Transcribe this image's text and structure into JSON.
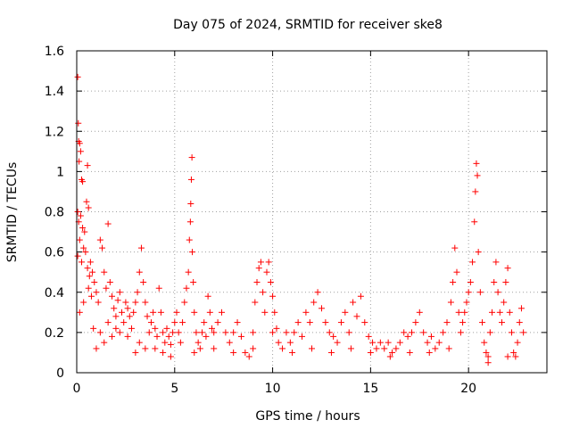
{
  "chart_data": {
    "type": "scatter",
    "title": "Day 075 of 2024, SRMTID for receiver ske8",
    "xlabel": "GPS time / hours",
    "ylabel": "SRMTID / TECUs",
    "xlim": [
      0,
      24
    ],
    "ylim": [
      0,
      1.6
    ],
    "xticks": [
      0,
      5,
      10,
      15,
      20
    ],
    "xtick_labels": [
      "0",
      "5",
      "10",
      "15",
      "20"
    ],
    "yticks": [
      0,
      0.2,
      0.4,
      0.6,
      0.8,
      1,
      1.2,
      1.4,
      1.6
    ],
    "ytick_labels": [
      "0",
      "0.2",
      "0.4",
      "0.6",
      "0.8",
      "1",
      "1.2",
      "1.4",
      "1.6"
    ],
    "grid": true,
    "marker": "plus",
    "series": [
      {
        "name": "SRMTID",
        "color": "#ff0000",
        "points": [
          [
            0.05,
            1.47
          ],
          [
            0.08,
            1.24
          ],
          [
            0.1,
            1.15
          ],
          [
            0.15,
            1.14
          ],
          [
            0.2,
            1.1
          ],
          [
            0.12,
            1.05
          ],
          [
            0.25,
            0.96
          ],
          [
            0.3,
            0.95
          ],
          [
            0.55,
            1.03
          ],
          [
            0.05,
            0.8
          ],
          [
            0.1,
            0.75
          ],
          [
            0.2,
            0.78
          ],
          [
            0.3,
            0.72
          ],
          [
            0.4,
            0.7
          ],
          [
            0.5,
            0.85
          ],
          [
            0.6,
            0.82
          ],
          [
            0.15,
            0.66
          ],
          [
            0.35,
            0.62
          ],
          [
            0.05,
            0.58
          ],
          [
            0.25,
            0.55
          ],
          [
            0.45,
            0.6
          ],
          [
            0.55,
            0.52
          ],
          [
            0.65,
            0.48
          ],
          [
            0.7,
            0.55
          ],
          [
            0.8,
            0.5
          ],
          [
            0.9,
            0.45
          ],
          [
            1.0,
            0.4
          ],
          [
            0.15,
            0.3
          ],
          [
            0.35,
            0.35
          ],
          [
            0.6,
            0.42
          ],
          [
            0.75,
            0.38
          ],
          [
            0.85,
            0.22
          ],
          [
            1.1,
            0.35
          ],
          [
            1.2,
            0.66
          ],
          [
            1.3,
            0.62
          ],
          [
            1.4,
            0.5
          ],
          [
            1.5,
            0.42
          ],
          [
            1.6,
            0.74
          ],
          [
            1.7,
            0.45
          ],
          [
            1.8,
            0.38
          ],
          [
            1.9,
            0.32
          ],
          [
            2.0,
            0.28
          ],
          [
            2.1,
            0.36
          ],
          [
            2.2,
            0.4
          ],
          [
            2.3,
            0.3
          ],
          [
            2.4,
            0.25
          ],
          [
            2.5,
            0.35
          ],
          [
            2.6,
            0.32
          ],
          [
            2.7,
            0.28
          ],
          [
            2.8,
            0.22
          ],
          [
            2.9,
            0.3
          ],
          [
            3.0,
            0.35
          ],
          [
            3.1,
            0.4
          ],
          [
            3.2,
            0.5
          ],
          [
            3.3,
            0.62
          ],
          [
            3.4,
            0.45
          ],
          [
            3.5,
            0.35
          ],
          [
            3.6,
            0.28
          ],
          [
            3.7,
            0.2
          ],
          [
            3.8,
            0.25
          ],
          [
            3.9,
            0.3
          ],
          [
            4.0,
            0.22
          ],
          [
            4.1,
            0.18
          ],
          [
            4.2,
            0.42
          ],
          [
            4.3,
            0.3
          ],
          [
            4.4,
            0.2
          ],
          [
            4.5,
            0.15
          ],
          [
            4.6,
            0.22
          ],
          [
            4.7,
            0.18
          ],
          [
            4.8,
            0.14
          ],
          [
            4.9,
            0.2
          ],
          [
            5.0,
            0.25
          ],
          [
            1.2,
            0.2
          ],
          [
            1.4,
            0.15
          ],
          [
            1.6,
            0.25
          ],
          [
            1.8,
            0.18
          ],
          [
            2.2,
            0.2
          ],
          [
            2.6,
            0.18
          ],
          [
            3.0,
            0.1
          ],
          [
            3.2,
            0.15
          ],
          [
            3.5,
            0.12
          ],
          [
            4.0,
            0.12
          ],
          [
            4.4,
            0.1
          ],
          [
            4.8,
            0.08
          ],
          [
            5.1,
            0.3
          ],
          [
            5.2,
            0.2
          ],
          [
            5.3,
            0.15
          ],
          [
            5.4,
            0.25
          ],
          [
            5.5,
            0.35
          ],
          [
            5.6,
            0.42
          ],
          [
            5.7,
            0.5
          ],
          [
            5.75,
            0.66
          ],
          [
            5.8,
            0.75
          ],
          [
            5.82,
            0.84
          ],
          [
            5.85,
            0.96
          ],
          [
            5.88,
            1.07
          ],
          [
            5.9,
            0.6
          ],
          [
            5.95,
            0.45
          ],
          [
            6.0,
            0.3
          ],
          [
            6.1,
            0.2
          ],
          [
            6.2,
            0.15
          ],
          [
            6.3,
            0.12
          ],
          [
            6.4,
            0.2
          ],
          [
            6.5,
            0.25
          ],
          [
            6.6,
            0.18
          ],
          [
            6.7,
            0.38
          ],
          [
            6.8,
            0.3
          ],
          [
            6.9,
            0.22
          ],
          [
            7.0,
            0.2
          ],
          [
            7.2,
            0.25
          ],
          [
            7.4,
            0.3
          ],
          [
            7.6,
            0.2
          ],
          [
            7.8,
            0.15
          ],
          [
            8.0,
            0.2
          ],
          [
            8.2,
            0.25
          ],
          [
            8.4,
            0.18
          ],
          [
            8.6,
            0.1
          ],
          [
            8.8,
            0.08
          ],
          [
            9.0,
            0.2
          ],
          [
            9.1,
            0.35
          ],
          [
            9.2,
            0.45
          ],
          [
            9.3,
            0.52
          ],
          [
            9.4,
            0.55
          ],
          [
            9.5,
            0.4
          ],
          [
            9.6,
            0.3
          ],
          [
            9.7,
            0.5
          ],
          [
            9.8,
            0.55
          ],
          [
            9.9,
            0.45
          ],
          [
            10.0,
            0.38
          ],
          [
            10.1,
            0.3
          ],
          [
            10.2,
            0.22
          ],
          [
            10.3,
            0.15
          ],
          [
            10.5,
            0.12
          ],
          [
            10.7,
            0.2
          ],
          [
            10.9,
            0.15
          ],
          [
            11.1,
            0.2
          ],
          [
            11.3,
            0.25
          ],
          [
            11.5,
            0.18
          ],
          [
            11.7,
            0.3
          ],
          [
            11.9,
            0.25
          ],
          [
            12.1,
            0.35
          ],
          [
            12.3,
            0.4
          ],
          [
            12.5,
            0.32
          ],
          [
            12.7,
            0.25
          ],
          [
            12.9,
            0.2
          ],
          [
            13.1,
            0.18
          ],
          [
            13.3,
            0.15
          ],
          [
            13.5,
            0.25
          ],
          [
            13.7,
            0.3
          ],
          [
            13.9,
            0.2
          ],
          [
            14.1,
            0.35
          ],
          [
            14.3,
            0.28
          ],
          [
            14.5,
            0.38
          ],
          [
            14.7,
            0.25
          ],
          [
            14.9,
            0.18
          ],
          [
            15.1,
            0.15
          ],
          [
            15.3,
            0.12
          ],
          [
            15.5,
            0.15
          ],
          [
            15.7,
            0.12
          ],
          [
            15.9,
            0.15
          ],
          [
            16.1,
            0.1
          ],
          [
            16.3,
            0.12
          ],
          [
            16.5,
            0.15
          ],
          [
            16.7,
            0.2
          ],
          [
            16.9,
            0.18
          ],
          [
            17.1,
            0.2
          ],
          [
            17.3,
            0.25
          ],
          [
            17.5,
            0.3
          ],
          [
            17.7,
            0.2
          ],
          [
            17.9,
            0.15
          ],
          [
            18.1,
            0.18
          ],
          [
            18.3,
            0.12
          ],
          [
            18.5,
            0.15
          ],
          [
            18.7,
            0.2
          ],
          [
            18.9,
            0.25
          ],
          [
            19.1,
            0.35
          ],
          [
            19.2,
            0.45
          ],
          [
            19.3,
            0.62
          ],
          [
            19.4,
            0.5
          ],
          [
            19.5,
            0.3
          ],
          [
            19.6,
            0.2
          ],
          [
            19.7,
            0.25
          ],
          [
            19.8,
            0.3
          ],
          [
            19.9,
            0.35
          ],
          [
            20.0,
            0.4
          ],
          [
            20.1,
            0.45
          ],
          [
            20.2,
            0.55
          ],
          [
            20.3,
            0.75
          ],
          [
            20.35,
            0.9
          ],
          [
            20.4,
            1.04
          ],
          [
            20.45,
            0.98
          ],
          [
            20.5,
            0.6
          ],
          [
            20.6,
            0.4
          ],
          [
            20.7,
            0.25
          ],
          [
            20.8,
            0.15
          ],
          [
            20.9,
            0.1
          ],
          [
            21.0,
            0.08
          ],
          [
            21.1,
            0.2
          ],
          [
            21.2,
            0.3
          ],
          [
            21.3,
            0.45
          ],
          [
            21.4,
            0.55
          ],
          [
            21.5,
            0.4
          ],
          [
            21.6,
            0.3
          ],
          [
            21.7,
            0.25
          ],
          [
            21.8,
            0.35
          ],
          [
            21.9,
            0.45
          ],
          [
            22.0,
            0.52
          ],
          [
            22.1,
            0.3
          ],
          [
            22.2,
            0.2
          ],
          [
            22.3,
            0.1
          ],
          [
            22.4,
            0.08
          ],
          [
            22.5,
            0.15
          ],
          [
            22.6,
            0.25
          ],
          [
            22.7,
            0.32
          ],
          [
            22.8,
            0.2
          ],
          [
            1.0,
            0.12
          ],
          [
            2.0,
            0.22
          ],
          [
            6.0,
            0.1
          ],
          [
            7.0,
            0.12
          ],
          [
            8.0,
            0.1
          ],
          [
            9.0,
            0.12
          ],
          [
            10.0,
            0.2
          ],
          [
            11.0,
            0.1
          ],
          [
            12.0,
            0.12
          ],
          [
            13.0,
            0.1
          ],
          [
            14.0,
            0.12
          ],
          [
            15.0,
            0.1
          ],
          [
            16.0,
            0.08
          ],
          [
            17.0,
            0.1
          ],
          [
            18.0,
            0.1
          ],
          [
            19.0,
            0.12
          ],
          [
            21.0,
            0.05
          ],
          [
            22.0,
            0.08
          ]
        ]
      }
    ]
  }
}
